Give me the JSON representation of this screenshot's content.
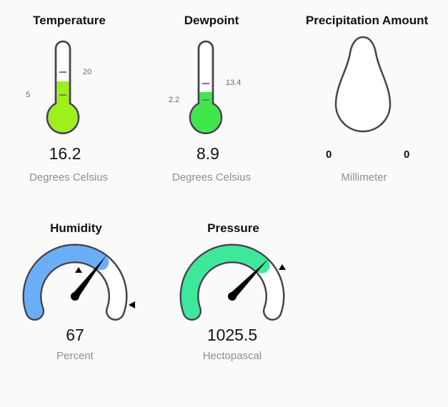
{
  "colors": {
    "temperature_fill": "#9ef01a",
    "dewpoint_fill": "#3ee84a",
    "humidity_fill": "#6aaef8",
    "pressure_fill": "#3ee89a",
    "outline": "#44444e",
    "gauge_track": "#ffffff"
  },
  "temperature": {
    "title": "Temperature",
    "value": "16.2",
    "unit": "Degrees Celsius",
    "tick_high": "20",
    "tick_low": "5",
    "icon": "thermometer-icon"
  },
  "dewpoint": {
    "title": "Dewpoint",
    "value": "8.9",
    "unit": "Degrees Celsius",
    "tick_high": "13.4",
    "tick_low": "2.2",
    "icon": "thermometer-icon"
  },
  "precipitation": {
    "title": "Precipitation Amount",
    "min_label": "0",
    "max_label": "0",
    "unit": "Millimeter",
    "icon": "raindrop-icon"
  },
  "humidity": {
    "title": "Humidity",
    "value": "67",
    "unit": "Percent",
    "fraction": 0.67,
    "icon": "gauge-icon"
  },
  "pressure": {
    "title": "Pressure",
    "value": "1025.5",
    "unit": "Hectopascal",
    "fraction": 0.7,
    "icon": "gauge-icon"
  }
}
